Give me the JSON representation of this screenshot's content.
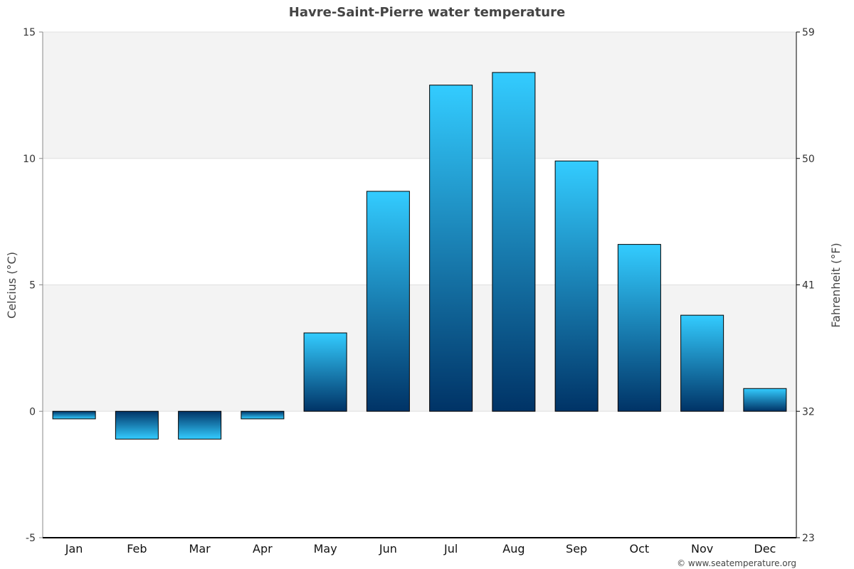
{
  "chart_data": {
    "type": "bar",
    "title": "Havre-Saint-Pierre water temperature",
    "ylabel": "Celcius (°C)",
    "ylabel_right": "Fahrenheit (°F)",
    "categories": [
      "Jan",
      "Feb",
      "Mar",
      "Apr",
      "May",
      "Jun",
      "Jul",
      "Aug",
      "Sep",
      "Oct",
      "Nov",
      "Dec"
    ],
    "values": [
      -0.3,
      -1.1,
      -1.1,
      -0.3,
      3.1,
      8.7,
      12.9,
      13.4,
      9.9,
      6.6,
      3.8,
      0.9
    ],
    "ylim": [
      -5,
      15
    ],
    "yticks": [
      {
        "v": -5,
        "label": "-5"
      },
      {
        "v": 0,
        "label": "0"
      },
      {
        "v": 5,
        "label": "5"
      },
      {
        "v": 10,
        "label": "10"
      },
      {
        "v": 15,
        "label": "15"
      }
    ],
    "yticks_right": [
      {
        "v": -5,
        "label": "23"
      },
      {
        "v": 0,
        "label": "32"
      },
      {
        "v": 5,
        "label": "41"
      },
      {
        "v": 10,
        "label": "50"
      },
      {
        "v": 15,
        "label": "59"
      }
    ],
    "grid": true,
    "colors": {
      "bar_light": "#33ccff",
      "bar_dark": "#003366",
      "band": "#f3f3f3",
      "grid": "#e0e0e0"
    }
  },
  "credit": "© www.seatemperature.org"
}
